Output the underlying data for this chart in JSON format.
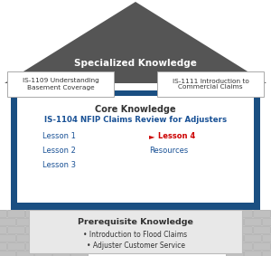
{
  "specialized_label": "Specialized Knowledge",
  "specialized_courses": [
    "IS-1109 Understanding\nBasement Coverage",
    "IS-1111 Introduction to\nCommercial Claims"
  ],
  "core_label": "Core Knowledge",
  "core_course": "IS-1104 NFIP Claims Review for Adjusters",
  "lessons_left": [
    "Lesson 1",
    "Lesson 2",
    "Lesson 3"
  ],
  "prereq_label": "Prerequisite Knowledge",
  "prereq_courses": [
    "• Introduction to Flood Claims",
    "• Adjuster Customer Service"
  ],
  "colors": {
    "roof_fill": "#555555",
    "roof_text": "#ffffff",
    "wall_blue": "#1a4f82",
    "core_box_bg": "#ffffff",
    "core_label_text": "#333333",
    "core_course_text": "#1a5296",
    "lesson_text": "#1a5296",
    "lesson4_arrow_color": "#cc0000",
    "lesson4_text": "#cc0000",
    "resources_text": "#1a5296",
    "prereq_bg": "#e8e8e8",
    "prereq_text": "#333333",
    "specialized_box_bg": "#ffffff",
    "specialized_box_border": "#aaaaaa",
    "brick_color": "#c0c0c0",
    "brick_mortar": "#999999"
  },
  "figsize": [
    3.0,
    2.83
  ],
  "dpi": 100
}
